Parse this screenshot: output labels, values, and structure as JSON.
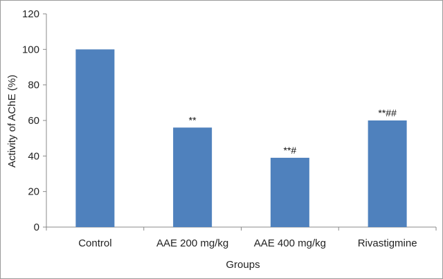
{
  "chart_data": {
    "type": "bar",
    "title": "",
    "xlabel": "Groups",
    "ylabel": "Activity of AChE (%)",
    "categories": [
      "Control",
      "AAE 200 mg/kg",
      "AAE 400 mg/kg",
      "Rivastigmine"
    ],
    "values": [
      100,
      56,
      39,
      60
    ],
    "annotations": [
      "",
      "**",
      "**#",
      "**##"
    ],
    "ylim": [
      0,
      120
    ],
    "yticks": [
      0,
      20,
      40,
      60,
      80,
      100,
      120
    ],
    "grid": false,
    "legend": "none",
    "bar_color": "#4F81BD"
  }
}
